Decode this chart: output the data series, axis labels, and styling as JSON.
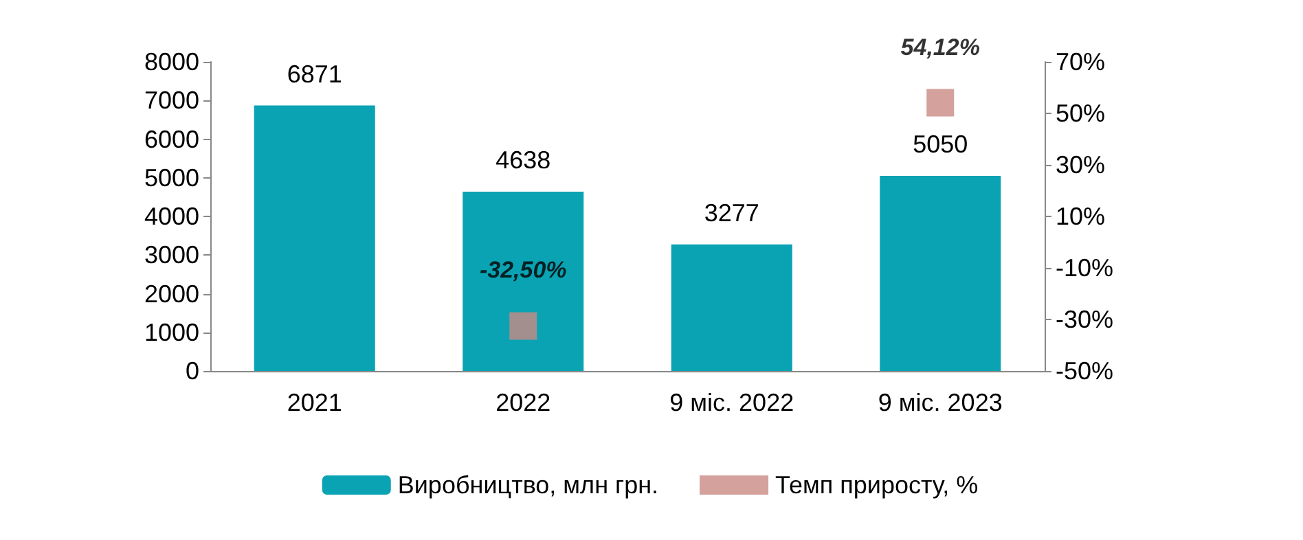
{
  "chart_data": {
    "type": "bar",
    "categories": [
      "2021",
      "2022",
      "9 міс. 2022",
      "9 міс. 2023"
    ],
    "series": [
      {
        "name": "Виробництво, млн грн.",
        "color": "#0aa3b3",
        "values": [
          6871,
          4638,
          3277,
          5050
        ],
        "value_labels": [
          "6871",
          "4638",
          "3277",
          "5050"
        ]
      },
      {
        "name": "Темп приросту, %",
        "type": "scatter",
        "axis": "y2",
        "color": "#c98a84",
        "marker": "square",
        "values": [
          null,
          -32.5,
          null,
          54.12
        ],
        "value_labels": [
          null,
          "-32,50%",
          null,
          "54,12%"
        ]
      }
    ],
    "ylim": [
      0,
      8000
    ],
    "yticks": [
      0,
      1000,
      2000,
      3000,
      4000,
      5000,
      6000,
      7000,
      8000
    ],
    "y2lim": [
      -50,
      70
    ],
    "y2ticks": [
      {
        "value": -50,
        "label": "-50%"
      },
      {
        "value": -30,
        "label": "-30%"
      },
      {
        "value": -10,
        "label": "-10%"
      },
      {
        "value": 10,
        "label": "10%"
      },
      {
        "value": 30,
        "label": "30%"
      },
      {
        "value": 50,
        "label": "50%"
      },
      {
        "value": 70,
        "label": "70%"
      }
    ],
    "grid": false,
    "legend": "bottom"
  }
}
